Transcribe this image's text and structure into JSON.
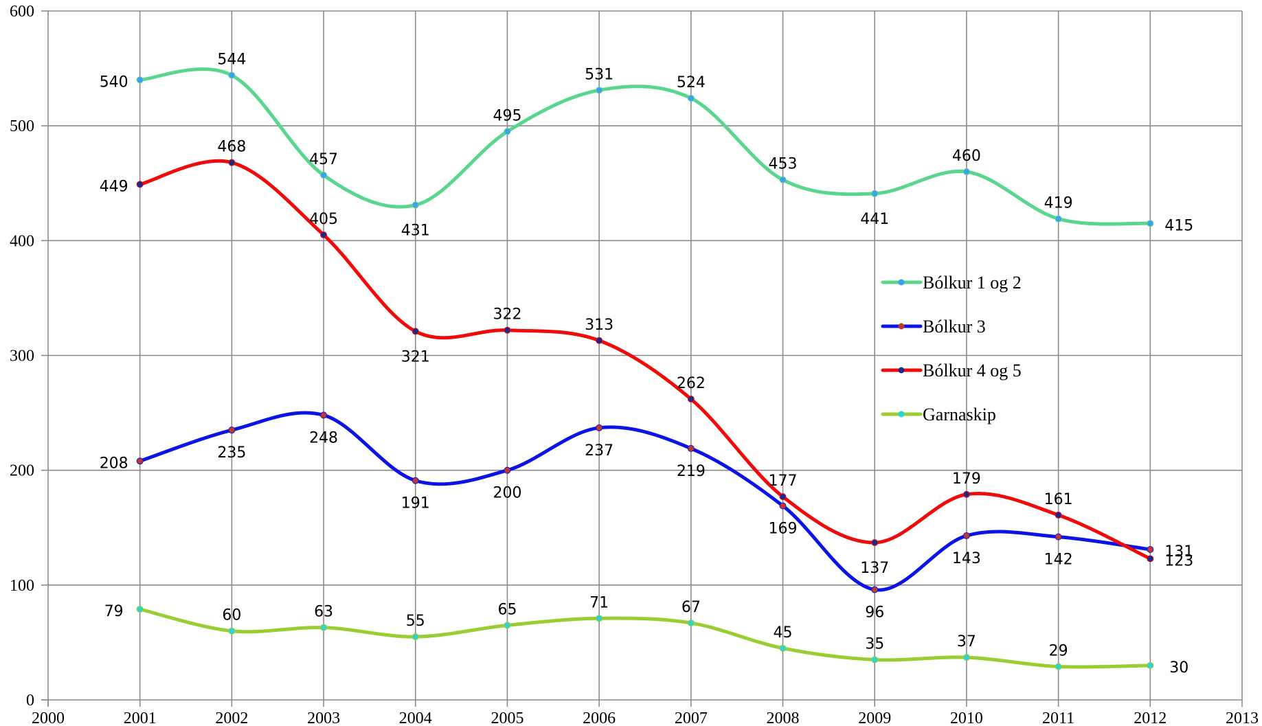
{
  "chart_data": {
    "type": "line",
    "smooth": true,
    "title": "",
    "xlabel": "",
    "ylabel": "",
    "xlim": [
      2000,
      2013
    ],
    "ylim": [
      0,
      600
    ],
    "x_ticks": [
      2000,
      2001,
      2002,
      2003,
      2004,
      2005,
      2006,
      2007,
      2008,
      2009,
      2010,
      2011,
      2012,
      2013
    ],
    "y_ticks": [
      0,
      100,
      200,
      300,
      400,
      500,
      600
    ],
    "grid": true,
    "legend_position": "right",
    "x": [
      2001,
      2002,
      2003,
      2004,
      2005,
      2006,
      2007,
      2008,
      2009,
      2010,
      2011,
      2012
    ],
    "series": [
      {
        "name": "Bólkur 1 og 2",
        "color": "#58d68d",
        "marker_color": "#3ea0f0",
        "values": [
          540,
          544,
          457,
          431,
          495,
          531,
          524,
          453,
          441,
          460,
          419,
          415
        ]
      },
      {
        "name": "Bólkur 3",
        "color": "#0a14e6",
        "marker_color": "#c0392b",
        "values": [
          208,
          235,
          248,
          191,
          200,
          237,
          219,
          169,
          96,
          143,
          142,
          131
        ]
      },
      {
        "name": "Bólkur 4 og 5",
        "color": "#f00a0a",
        "marker_color": "#1a2a8c",
        "values": [
          449,
          468,
          405,
          321,
          322,
          313,
          262,
          177,
          137,
          179,
          161,
          123
        ]
      },
      {
        "name": "Garnaskip",
        "color": "#9acd32",
        "marker_color": "#2ed3d3",
        "values": [
          79,
          60,
          63,
          55,
          65,
          71,
          67,
          45,
          35,
          37,
          29,
          30
        ]
      }
    ]
  }
}
